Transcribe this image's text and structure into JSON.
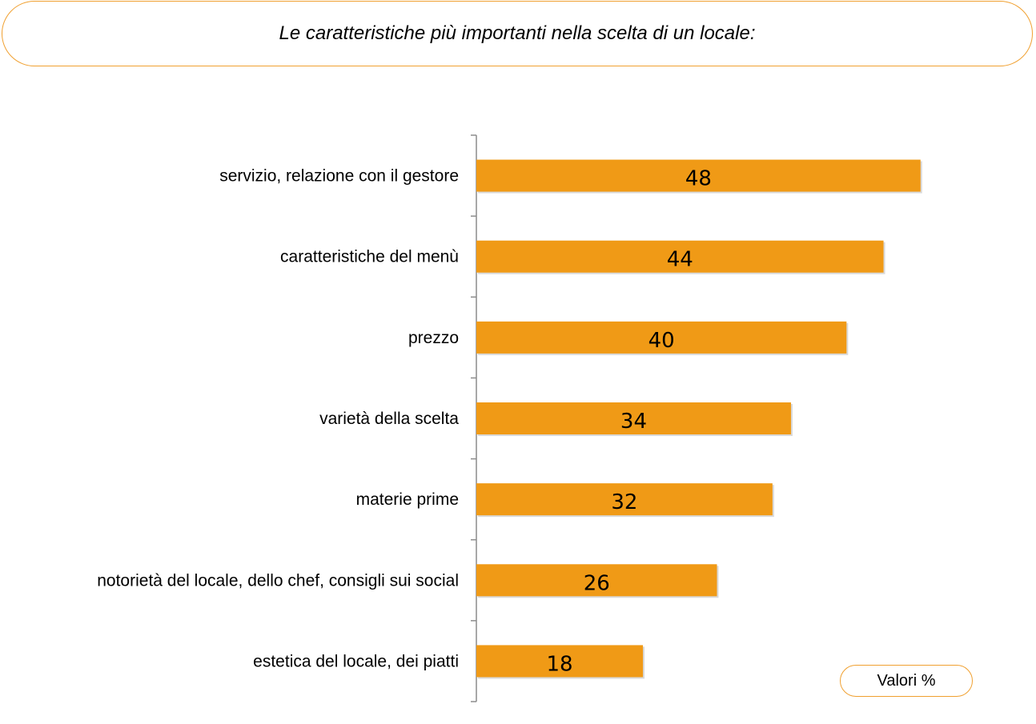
{
  "title": "Le caratteristiche più importanti nella scelta di un locale:",
  "unit_label": "Valori %",
  "colors": {
    "bar": "#f09a16",
    "accent_border": "#f0a030",
    "axis": "#8c8c8c"
  },
  "chart_data": {
    "type": "bar",
    "orientation": "horizontal",
    "categories": [
      "servizio, relazione con il gestore",
      "caratteristiche del menù",
      "prezzo",
      "varietà della scelta",
      "materie prime",
      "notorietà del locale, dello chef, consigli sui social",
      "estetica del locale, dei piatti"
    ],
    "values": [
      48,
      44,
      40,
      34,
      32,
      26,
      18
    ],
    "data_labels": [
      "48",
      "44",
      "40",
      "34",
      "32",
      "26",
      "18"
    ],
    "xlim": [
      0,
      52
    ],
    "grid": false,
    "legend": "none"
  }
}
